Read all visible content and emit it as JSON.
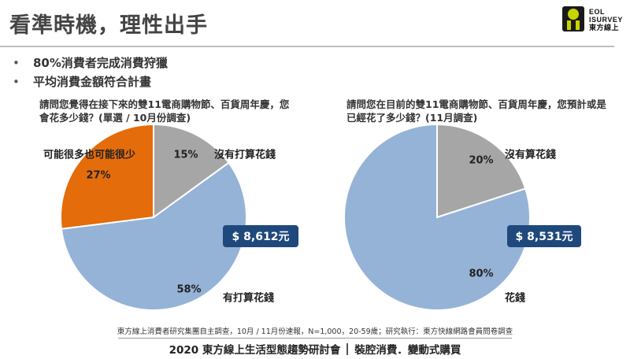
{
  "header": {
    "title": "看準時機，理性出手",
    "logo_line1": "EOL",
    "logo_line2": "ISURVEY",
    "logo_line3": "東方線上"
  },
  "bullets": [
    "80%消費者完成消費狩獵",
    "平均消費金額符合計畫"
  ],
  "questions": {
    "left": "請問您覺得在接下來的雙11電商購物節、百貨周年慶，您會花多少錢？(單選 / 10月份調查)",
    "right": "請問您在目前的雙11電商購物節、百貨周年慶，您預計或是已經花了多少錢？(11月調查)"
  },
  "chart_data": [
    {
      "type": "pie",
      "slices": [
        {
          "label": "沒有打算花錢",
          "value": 15,
          "value_label": "15%",
          "color": "#a6a6a6"
        },
        {
          "label": "有打算花錢",
          "value": 58,
          "value_label": "58%",
          "color": "#95b3d7"
        },
        {
          "label": "可能很多也可能很少",
          "value": 27,
          "value_label": "27%",
          "color": "#e46c0a"
        }
      ],
      "callout": "$ 8,612元"
    },
    {
      "type": "pie",
      "slices": [
        {
          "label": "沒有算花錢",
          "value": 20,
          "value_label": "20%",
          "color": "#a6a6a6"
        },
        {
          "label": "花錢",
          "value": 80,
          "value_label": "80%",
          "color": "#95b3d7"
        }
      ],
      "callout": "$ 8,531元"
    }
  ],
  "footer": {
    "note": "東方線上消費者研究集團自主調查，10月 / 11月份速報，N=1,000，20-59歲；研究執行：東方快線網路會員問卷調查",
    "main_left": "2020 東方線上生活型態趨勢研討會",
    "main_right": "裝腔消費．變動式購買"
  },
  "colors": {
    "callout_fill": "#1f497d",
    "slice_border": "#ffffff"
  }
}
